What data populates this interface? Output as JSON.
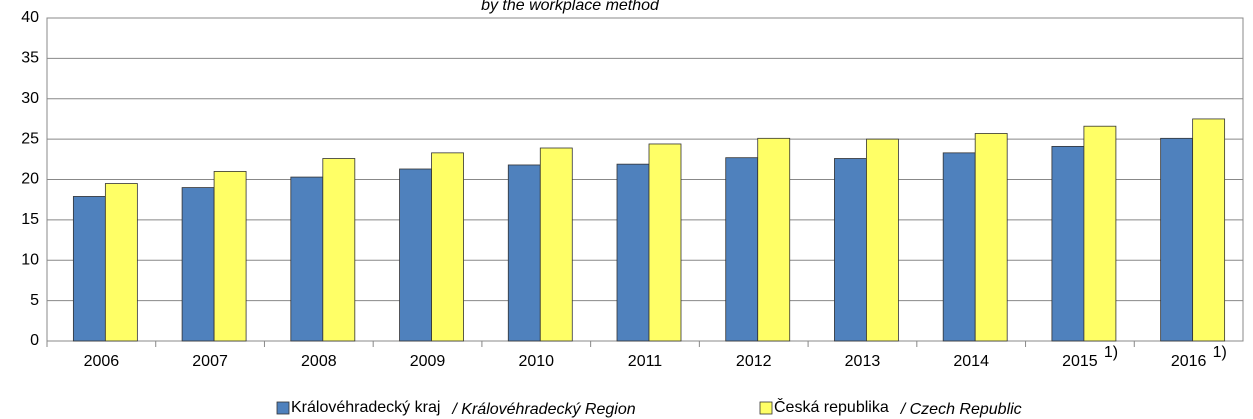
{
  "chart_data": {
    "type": "bar",
    "subtitle": "by the workplace method",
    "categories": [
      "2006",
      "2007",
      "2008",
      "2009",
      "2010",
      "2011",
      "2012",
      "2013",
      "2014",
      "2015",
      "2016"
    ],
    "category_footnotes": [
      null,
      null,
      null,
      null,
      null,
      null,
      null,
      null,
      null,
      "1)",
      "1)"
    ],
    "series": [
      {
        "name": "Královéhradecký kraj",
        "name_en": "/ Královéhradecký Region",
        "color": "#4f81bd",
        "values": [
          17.9,
          19.0,
          20.3,
          21.3,
          21.8,
          21.9,
          22.7,
          22.6,
          23.3,
          24.1,
          25.1
        ]
      },
      {
        "name": "Česká republika",
        "name_en": "/ Czech Republic",
        "color": "#ffff66",
        "values": [
          19.5,
          21.0,
          22.6,
          23.3,
          23.9,
          24.4,
          25.1,
          25.0,
          25.7,
          26.6,
          27.5
        ]
      }
    ],
    "ylim": [
      0,
      40
    ],
    "yticks": [
      0,
      5,
      10,
      15,
      20,
      25,
      30,
      35,
      40
    ],
    "grid": true
  }
}
